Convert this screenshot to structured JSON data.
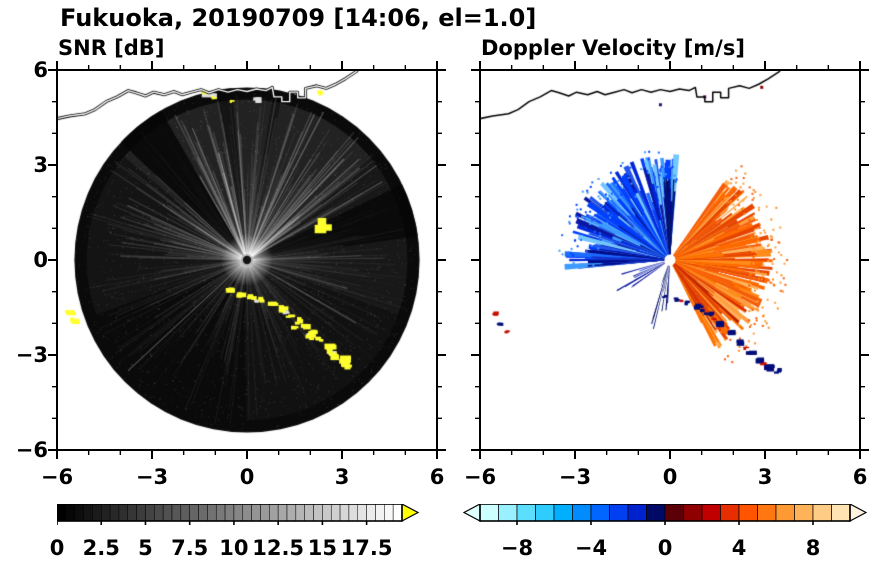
{
  "header": {
    "title": "Fukuoka, 20190709 [14:06, el=1.0]"
  },
  "panels": {
    "snr": {
      "title": "SNR [dB]"
    },
    "velocity": {
      "title": "Doppler Velocity [m/s]"
    }
  },
  "axes": {
    "x_tick_labels": [
      "−6",
      "−3",
      "0",
      "3",
      "6"
    ],
    "y_tick_labels": [
      "6",
      "3",
      "0",
      "−3",
      "−6"
    ],
    "tick_values": [
      -6,
      -3,
      0,
      3,
      6
    ],
    "minor_tick_interval": 1,
    "range_km": [
      -6,
      6
    ]
  },
  "colorbars": {
    "snr": {
      "labels": [
        {
          "text": "0",
          "value": 0
        },
        {
          "text": "2.5",
          "value": 2.5
        },
        {
          "text": "5",
          "value": 5
        },
        {
          "text": "7.5",
          "value": 7.5
        },
        {
          "text": "10",
          "value": 10
        },
        {
          "text": "12.5",
          "value": 12.5
        },
        {
          "text": "15",
          "value": 15
        },
        {
          "text": "17.5",
          "value": 17.5
        }
      ],
      "bar_max": 19.5,
      "segments": 39,
      "start_color": "#000000",
      "end_color": "#ffffff",
      "arrow_color": "#ffff00"
    },
    "velocity": {
      "labels": [
        {
          "text": "−8",
          "value": -8
        },
        {
          "text": "−4",
          "value": -4
        },
        {
          "text": "0",
          "value": 0
        },
        {
          "text": "4",
          "value": 4
        },
        {
          "text": "8",
          "value": 8
        }
      ],
      "min": -10,
      "max": 10,
      "colors": [
        "#ccffff",
        "#99f0ff",
        "#5cdeff",
        "#2fcdff",
        "#00b0ff",
        "#008cff",
        "#0066ff",
        "#0040f0",
        "#0022cc",
        "#000a66",
        "#5c0008",
        "#8f0000",
        "#c00000",
        "#e62e00",
        "#ff5500",
        "#ff7711",
        "#ff9933",
        "#ffb359",
        "#ffcc85",
        "#ffe3b3"
      ],
      "arrow_left": "#e0ffff",
      "arrow_right": "#fff2e0"
    }
  },
  "coastline": {
    "color_left": "#ffffff",
    "color_right": "#000000",
    "points": [
      [
        -6.3,
        4.4
      ],
      [
        -5.6,
        4.55
      ],
      [
        -5.1,
        4.62
      ],
      [
        -4.8,
        4.75
      ],
      [
        -4.45,
        5.0
      ],
      [
        -4.1,
        5.15
      ],
      [
        -3.75,
        5.35
      ],
      [
        -3.5,
        5.28
      ],
      [
        -3.2,
        5.18
      ],
      [
        -2.95,
        5.3
      ],
      [
        -2.6,
        5.22
      ],
      [
        -2.3,
        5.32
      ],
      [
        -2.05,
        5.22
      ],
      [
        -1.75,
        5.3
      ],
      [
        -1.45,
        5.38
      ],
      [
        -1.2,
        5.28
      ],
      [
        -0.9,
        5.38
      ],
      [
        -0.6,
        5.3
      ],
      [
        -0.3,
        5.38
      ],
      [
        0.0,
        5.32
      ],
      [
        0.3,
        5.4
      ],
      [
        0.6,
        5.35
      ],
      [
        0.8,
        5.45
      ],
      [
        0.85,
        5.15
      ],
      [
        1.1,
        5.15
      ],
      [
        1.1,
        5.0
      ],
      [
        1.35,
        5.0
      ],
      [
        1.35,
        5.3
      ],
      [
        1.6,
        5.3
      ],
      [
        1.6,
        5.12
      ],
      [
        1.85,
        5.12
      ],
      [
        1.85,
        5.42
      ],
      [
        2.2,
        5.5
      ],
      [
        2.5,
        5.42
      ],
      [
        2.8,
        5.55
      ],
      [
        3.1,
        5.72
      ],
      [
        3.45,
        5.95
      ],
      [
        3.6,
        6.15
      ]
    ]
  },
  "chart_data": [
    {
      "type": "radar_ppi",
      "title": "SNR [dB]",
      "site": "Fukuoka",
      "date": "20190709",
      "time": "14:06",
      "elevation_deg": 1.0,
      "variable": "signal-to-noise ratio",
      "units": "dB",
      "x_range_km": [
        -6,
        6
      ],
      "y_range_km": [
        -6,
        6
      ],
      "color_scale": {
        "min": 0,
        "max": 17.5,
        "step": 2.5,
        "style": "black-to-white grayscale with yellow overflow arrow"
      },
      "summary": "Dark scan disc (radius ~5.5 km) of low SNR with bright radial streaks from the radar at the origin; strong yellow echoes (high SNR, coastline/ground clutter) along an arc running southeast from ~(0,-1) to ~(3.2,-3.4), at the west edge ~(-5.5,-1.8), and along the northern coastline; shadowed dark sectors to the upper-left and right.",
      "render": {
        "disc_radius": 5.45,
        "disc_color": "#0a0a0a",
        "glow_sectors": [
          [
            40,
            140,
            0.1
          ],
          [
            -20,
            40,
            0.06
          ],
          [
            140,
            200,
            0.045
          ],
          [
            270,
            340,
            0.03
          ]
        ],
        "dark_sectors": [
          [
            120,
            137,
            0.85
          ],
          [
            8,
            26,
            0.75
          ],
          [
            95,
            100,
            0.5
          ],
          [
            78,
            81,
            0.45
          ]
        ],
        "ray_count": 440,
        "bright_ray_count": 28,
        "speckle_count": 2600,
        "center_dot_color": "#141414",
        "yellow": "#ffff2e",
        "yellow_blobs": [
          [
            -0.55,
            -0.95,
            0.18
          ],
          [
            -0.2,
            -1.1,
            0.15
          ],
          [
            0.15,
            -1.2,
            0.16
          ],
          [
            0.5,
            -1.25,
            0.14
          ],
          [
            0.8,
            -1.35,
            0.18
          ],
          [
            1.1,
            -1.55,
            0.2
          ],
          [
            1.35,
            -1.75,
            0.16
          ],
          [
            1.6,
            -1.95,
            0.2
          ],
          [
            1.85,
            -2.1,
            0.18
          ],
          [
            2.1,
            -2.3,
            0.22
          ],
          [
            2.3,
            -2.5,
            0.18
          ],
          [
            2.55,
            -2.8,
            0.22
          ],
          [
            2.8,
            -3.0,
            0.2
          ],
          [
            3.0,
            -3.2,
            0.24
          ],
          [
            3.2,
            -3.35,
            0.18
          ],
          [
            2.0,
            -2.45,
            0.14
          ],
          [
            1.5,
            -2.1,
            0.12
          ],
          [
            2.4,
            1.08,
            0.3
          ],
          [
            -5.6,
            -1.65,
            0.18
          ],
          [
            -5.45,
            -1.95,
            0.16
          ],
          [
            -1.35,
            5.3,
            0.12
          ],
          [
            -1.05,
            5.12,
            0.1
          ],
          [
            2.3,
            5.28,
            0.12
          ],
          [
            -0.5,
            5.0,
            0.09
          ]
        ],
        "white_blobs": [
          [
            1.25,
            -1.65,
            0.12
          ],
          [
            2.0,
            -2.35,
            0.12
          ],
          [
            2.7,
            -2.95,
            0.14
          ],
          [
            3.05,
            -3.3,
            0.12
          ],
          [
            0.3,
            -1.3,
            0.1
          ],
          [
            -1.2,
            5.2,
            0.22
          ],
          [
            0.3,
            5.05,
            0.18
          ]
        ]
      }
    },
    {
      "type": "radar_ppi",
      "title": "Doppler Velocity [m/s]",
      "site": "Fukuoka",
      "date": "20190709",
      "time": "14:06",
      "elevation_deg": 1.0,
      "variable": "Doppler velocity",
      "units": "m/s",
      "x_range_km": [
        -6,
        6
      ],
      "y_range_km": [
        -6,
        6
      ],
      "color_scale": {
        "min": -10,
        "max": 10,
        "step": 4,
        "style": "cyan-blue-navy for negative (toward), dark red-orange-pale for positive (away), dark near zero"
      },
      "summary": "Fan of negative (blue, approaching) velocities north-through-west of the radar and positive (orange, receding) velocities east-through-southeast, both out to ~3.3 km; dark navy/red ground-clutter arc along the southern coastline from ~(0,-1.2) to ~(3.4,-3.5) and small red/navy echoes near (-5.4,-2); white elsewhere with black coastline drawn to the north.",
      "render": {
        "fans": [
          {
            "a0": 86,
            "a1": 184,
            "count": 320,
            "rmin": 0.7,
            "rmax": 3.35,
            "w": [
              1.2,
              3.2
            ],
            "colors": [
              "#0040ff",
              "#1e6bff",
              "#0026d8",
              "#3d9bff",
              "#74c6ff",
              "#0a17a0",
              "#2255ee"
            ]
          },
          {
            "a0": 86,
            "a1": 96,
            "count": 50,
            "rmin": 0.4,
            "rmax": 2.6,
            "w": [
              0.8,
              2.0
            ],
            "colors": [
              "#000d8a",
              "#0a1160",
              "#001a66"
            ]
          },
          {
            "a0": 172,
            "a1": 186,
            "count": 35,
            "rmin": 0.5,
            "rmax": 2.7,
            "w": [
              0.8,
              2.2
            ],
            "colors": [
              "#000d8a",
              "#1133cc",
              "#2a52e0"
            ]
          },
          {
            "a0": -63,
            "a1": 55,
            "count": 430,
            "rmin": 0.3,
            "rmax": 3.25,
            "w": [
              1.2,
              3.2
            ],
            "colors": [
              "#ff8c1a",
              "#ff9f40",
              "#ff7400",
              "#f55d0a",
              "#e64500",
              "#ffb35c",
              "#ff6a00"
            ]
          },
          {
            "a0": -60,
            "a1": -32,
            "count": 40,
            "rmin": 0.5,
            "rmax": 3.0,
            "w": [
              0.8,
              2.0
            ],
            "colors": [
              "#d92e00",
              "#b81f00",
              "#e64500"
            ]
          },
          {
            "a0": 250,
            "a1": 268,
            "count": 14,
            "rmin": 0.4,
            "rmax": 2.3,
            "w": [
              0.6,
              1.4
            ],
            "colors": [
              "#001080",
              "#000d66"
            ]
          },
          {
            "a0": 196,
            "a1": 216,
            "count": 12,
            "rmin": 0.5,
            "rmax": 2.2,
            "w": [
              0.6,
              1.6
            ],
            "colors": [
              "#0040ff",
              "#0a17a0"
            ]
          }
        ],
        "speckles": [
          {
            "a0": -63,
            "a1": 55,
            "rmin": 2.5,
            "rmax": 3.75,
            "count": 150,
            "colors": [
              "#ff8c1a",
              "#ff9f40",
              "#f55d0a"
            ]
          },
          {
            "a0": 86,
            "a1": 184,
            "rmin": 2.3,
            "rmax": 3.55,
            "count": 100,
            "colors": [
              "#1e6bff",
              "#3d9bff",
              "#0040ff"
            ]
          }
        ],
        "navy_color": "#000d7a",
        "red_color": "#c80f00",
        "navy_blobs": [
          [
            0.2,
            -1.25,
            0.14
          ],
          [
            0.55,
            -1.35,
            0.13
          ],
          [
            0.9,
            -1.5,
            0.15
          ],
          [
            1.25,
            -1.7,
            0.16
          ],
          [
            1.55,
            -2.0,
            0.16
          ],
          [
            1.9,
            -2.3,
            0.17
          ],
          [
            2.2,
            -2.6,
            0.16
          ],
          [
            2.55,
            -2.9,
            0.18
          ],
          [
            2.85,
            -3.15,
            0.2
          ],
          [
            3.15,
            -3.4,
            0.22
          ],
          [
            3.4,
            -3.52,
            0.16
          ],
          [
            1.05,
            -1.6,
            0.1
          ],
          [
            -0.15,
            -1.15,
            0.1
          ],
          [
            -5.35,
            -2.05,
            0.12
          ]
        ],
        "red_blobs": [
          [
            0.35,
            -1.28,
            0.08
          ],
          [
            1.4,
            -1.85,
            0.09
          ],
          [
            2.4,
            -2.78,
            0.09
          ],
          [
            2.95,
            -3.3,
            0.1
          ],
          [
            -5.55,
            -1.72,
            0.14
          ],
          [
            -5.15,
            -2.28,
            0.09
          ]
        ],
        "top_specks": [
          [
            1.05,
            5.2,
            "#5a0a5a"
          ],
          [
            2.85,
            5.5,
            "#8b0000"
          ],
          [
            -0.35,
            4.95,
            "#30106e"
          ]
        ],
        "center_hole_radius_px": 5.5
      }
    }
  ]
}
